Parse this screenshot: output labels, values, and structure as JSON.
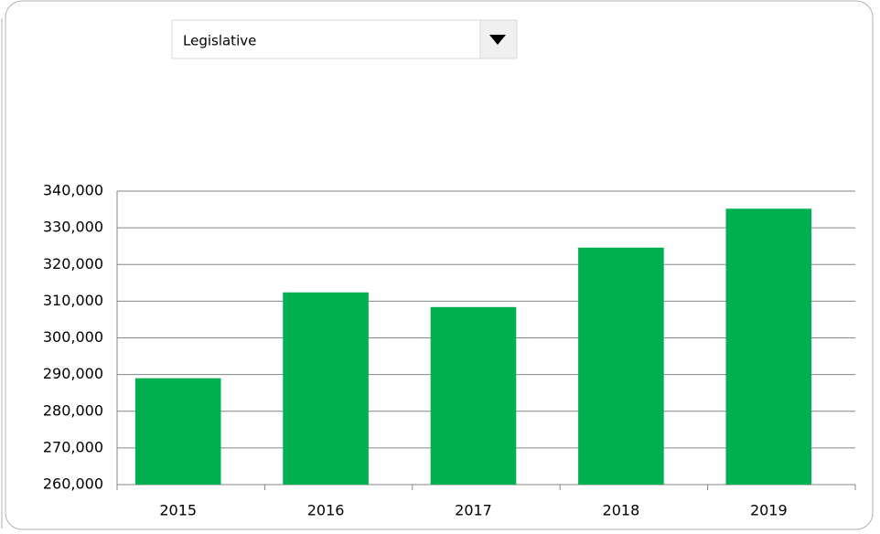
{
  "dropdown": {
    "selected": "Legislative"
  },
  "chart_data": {
    "type": "bar",
    "categories": [
      "2015",
      "2016",
      "2017",
      "2018",
      "2019"
    ],
    "values": [
      289000,
      312400,
      308400,
      324600,
      335200
    ],
    "color": "#00b050",
    "ylim": [
      260000,
      340000
    ],
    "yticks": [
      {
        "value": 260000,
        "label": "260,000"
      },
      {
        "value": 270000,
        "label": "270,000"
      },
      {
        "value": 280000,
        "label": "280,000"
      },
      {
        "value": 290000,
        "label": "290,000"
      },
      {
        "value": 300000,
        "label": "300,000"
      },
      {
        "value": 310000,
        "label": "310,000"
      },
      {
        "value": 320000,
        "label": "320,000"
      },
      {
        "value": 330000,
        "label": "330,000"
      },
      {
        "value": 340000,
        "label": "340,000"
      }
    ],
    "grid": true
  }
}
